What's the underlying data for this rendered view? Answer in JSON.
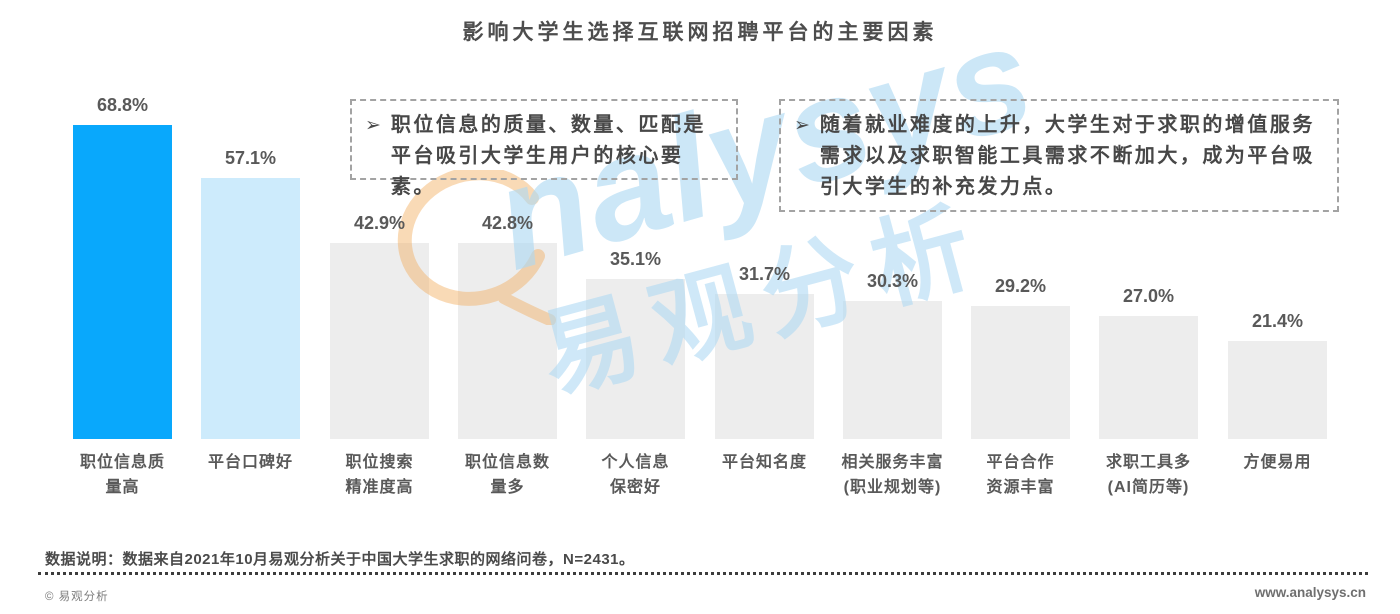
{
  "title": "影响大学生选择互联网招聘平台的主要因素",
  "callouts": [
    {
      "bullet": "➢",
      "text": "职位信息的质量、数量、匹配是\n平台吸引大学生用户的核心要素。"
    },
    {
      "bullet": "➢",
      "text": "随着就业难度的上升，大学生对于求职的增值服务\n需求以及求职智能工具需求不断加大，成为平台吸\n引大学生的补充发力点。"
    }
  ],
  "chart_data": {
    "type": "bar",
    "title": "影响大学生选择互联网招聘平台的主要因素",
    "categories": [
      "职位信息质\n量高",
      "平台口碑好",
      "职位搜索\n精准度高",
      "职位信息数\n量多",
      "个人信息\n保密好",
      "平台知名度",
      "相关服务丰富\n(职业规划等)",
      "平台合作\n资源丰富",
      "求职工具多\n(AI简历等)",
      "方便易用"
    ],
    "values": [
      68.8,
      57.1,
      42.9,
      42.8,
      35.1,
      31.7,
      30.3,
      29.2,
      27.0,
      21.4
    ],
    "value_labels": [
      "68.8%",
      "57.1%",
      "42.9%",
      "42.8%",
      "35.1%",
      "31.7%",
      "30.3%",
      "29.2%",
      "27.0%",
      "21.4%"
    ],
    "bar_colors": [
      "#09a8fc",
      "#cdebfc",
      "#ededed",
      "#ededed",
      "#ededed",
      "#ededed",
      "#ededed",
      "#ededed",
      "#ededed",
      "#ededed"
    ],
    "xlabel": "",
    "ylabel": "",
    "ylim": [
      0,
      70
    ],
    "grid": false,
    "legend": null,
    "data_labels_shown": true
  },
  "watermark": {
    "logo_text": "nalysys",
    "cn_text": "易观分析",
    "orange": "#f3ae60",
    "blue": "#aed9f3"
  },
  "footnote": "数据说明：数据来自2021年10月易观分析关于中国大学生求职的网络问卷，N=2431。",
  "footer": {
    "copyright": "© 易观分析",
    "website": "www.analysys.cn"
  },
  "colors": {
    "highlight_bar": "#09a8fc",
    "secondary_bar": "#cdebfc",
    "default_bar": "#ededed",
    "label_text": "#595959",
    "title_text": "#4d4d4d"
  }
}
